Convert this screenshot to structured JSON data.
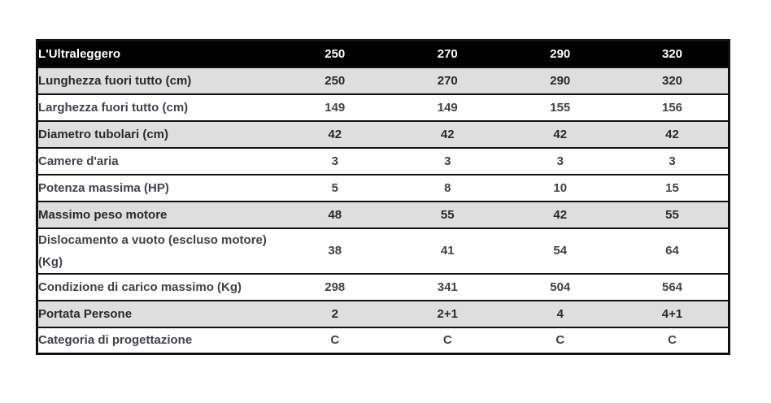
{
  "table": {
    "header": {
      "label": "L'Ultraleggero",
      "columns": [
        "250",
        "270",
        "290",
        "320"
      ]
    },
    "rows": [
      {
        "label": "Lunghezza fuori tutto (cm)",
        "values": [
          "250",
          "270",
          "290",
          "320"
        ],
        "shaded": true
      },
      {
        "label": "Larghezza fuori tutto (cm)",
        "values": [
          "149",
          "149",
          "155",
          "156"
        ],
        "shaded": false
      },
      {
        "label": "Diametro tubolari (cm)",
        "values": [
          "42",
          "42",
          "42",
          "42"
        ],
        "shaded": true
      },
      {
        "label": "Camere d'aria",
        "values": [
          "3",
          "3",
          "3",
          "3"
        ],
        "shaded": false
      },
      {
        "label": "Potenza massima (HP)",
        "values": [
          "5",
          "8",
          "10",
          "15"
        ],
        "shaded": false
      },
      {
        "label": "Massimo peso motore",
        "values": [
          "48",
          "55",
          "42",
          "55"
        ],
        "shaded": true
      },
      {
        "label": "Dislocamento a vuoto (escluso motore) (Kg)",
        "values": [
          "38",
          "41",
          "54",
          "64"
        ],
        "shaded": false
      },
      {
        "label": "Condizione di carico massimo (Kg)",
        "values": [
          "298",
          "341",
          "504",
          "564"
        ],
        "shaded": false
      },
      {
        "label": "Portata Persone",
        "values": [
          "2",
          "2+1",
          "4",
          "4+1"
        ],
        "shaded": true
      },
      {
        "label": "Categoria di progettazione",
        "values": [
          "C",
          "C",
          "C",
          "C"
        ],
        "shaded": false
      }
    ],
    "colors": {
      "header_bg": "#000000",
      "header_text": "#ffffff",
      "shaded_row_bg": "#dedede",
      "plain_row_bg": "#ffffff",
      "border": "#111111",
      "plain_row_text": "#3e434b",
      "shaded_row_text": "#292929"
    }
  },
  "chart_data": {
    "type": "table",
    "title": "L'Ultraleggero",
    "columns": [
      "L'Ultraleggero",
      "250",
      "270",
      "290",
      "320"
    ],
    "rows": [
      [
        "Lunghezza fuori tutto (cm)",
        "250",
        "270",
        "290",
        "320"
      ],
      [
        "Larghezza fuori tutto (cm)",
        "149",
        "149",
        "155",
        "156"
      ],
      [
        "Diametro tubolari (cm)",
        "42",
        "42",
        "42",
        "42"
      ],
      [
        "Camere d'aria",
        "3",
        "3",
        "3",
        "3"
      ],
      [
        "Potenza massima (HP)",
        "5",
        "8",
        "10",
        "15"
      ],
      [
        "Massimo peso motore",
        "48",
        "55",
        "42",
        "55"
      ],
      [
        "Dislocamento a vuoto (escluso motore) (Kg)",
        "38",
        "41",
        "54",
        "64"
      ],
      [
        "Condizione di carico massimo (Kg)",
        "298",
        "341",
        "504",
        "564"
      ],
      [
        "Portata Persone",
        "2",
        "2+1",
        "4",
        "4+1"
      ],
      [
        "Categoria di progettazione",
        "C",
        "C",
        "C",
        "C"
      ]
    ],
    "layout": {
      "header_style": "black background, white bold text",
      "shaded_rows_indices": [
        0,
        2,
        5,
        8
      ],
      "grid": "horizontal black lines only, outer black border"
    }
  }
}
